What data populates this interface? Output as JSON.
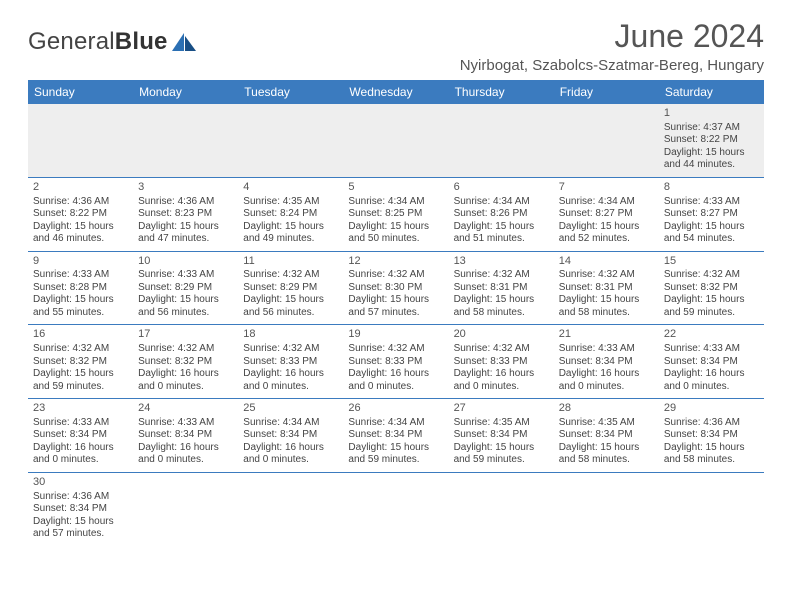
{
  "logo": {
    "text_a": "General",
    "text_b": "Blue",
    "icon_color_a": "#2b6fb3",
    "icon_color_b": "#184e85"
  },
  "title": "June 2024",
  "location": "Nyirbogat, Szabolcs-Szatmar-Bereg, Hungary",
  "colors": {
    "header_bg": "#3b7bbf",
    "header_fg": "#ffffff",
    "row_border": "#3b7bbf",
    "first_row_bg": "#eeeeee"
  },
  "day_headers": [
    "Sunday",
    "Monday",
    "Tuesday",
    "Wednesday",
    "Thursday",
    "Friday",
    "Saturday"
  ],
  "weeks": [
    [
      null,
      null,
      null,
      null,
      null,
      null,
      {
        "n": "1",
        "sr": "Sunrise: 4:37 AM",
        "ss": "Sunset: 8:22 PM",
        "d1": "Daylight: 15 hours",
        "d2": "and 44 minutes."
      }
    ],
    [
      {
        "n": "2",
        "sr": "Sunrise: 4:36 AM",
        "ss": "Sunset: 8:22 PM",
        "d1": "Daylight: 15 hours",
        "d2": "and 46 minutes."
      },
      {
        "n": "3",
        "sr": "Sunrise: 4:36 AM",
        "ss": "Sunset: 8:23 PM",
        "d1": "Daylight: 15 hours",
        "d2": "and 47 minutes."
      },
      {
        "n": "4",
        "sr": "Sunrise: 4:35 AM",
        "ss": "Sunset: 8:24 PM",
        "d1": "Daylight: 15 hours",
        "d2": "and 49 minutes."
      },
      {
        "n": "5",
        "sr": "Sunrise: 4:34 AM",
        "ss": "Sunset: 8:25 PM",
        "d1": "Daylight: 15 hours",
        "d2": "and 50 minutes."
      },
      {
        "n": "6",
        "sr": "Sunrise: 4:34 AM",
        "ss": "Sunset: 8:26 PM",
        "d1": "Daylight: 15 hours",
        "d2": "and 51 minutes."
      },
      {
        "n": "7",
        "sr": "Sunrise: 4:34 AM",
        "ss": "Sunset: 8:27 PM",
        "d1": "Daylight: 15 hours",
        "d2": "and 52 minutes."
      },
      {
        "n": "8",
        "sr": "Sunrise: 4:33 AM",
        "ss": "Sunset: 8:27 PM",
        "d1": "Daylight: 15 hours",
        "d2": "and 54 minutes."
      }
    ],
    [
      {
        "n": "9",
        "sr": "Sunrise: 4:33 AM",
        "ss": "Sunset: 8:28 PM",
        "d1": "Daylight: 15 hours",
        "d2": "and 55 minutes."
      },
      {
        "n": "10",
        "sr": "Sunrise: 4:33 AM",
        "ss": "Sunset: 8:29 PM",
        "d1": "Daylight: 15 hours",
        "d2": "and 56 minutes."
      },
      {
        "n": "11",
        "sr": "Sunrise: 4:32 AM",
        "ss": "Sunset: 8:29 PM",
        "d1": "Daylight: 15 hours",
        "d2": "and 56 minutes."
      },
      {
        "n": "12",
        "sr": "Sunrise: 4:32 AM",
        "ss": "Sunset: 8:30 PM",
        "d1": "Daylight: 15 hours",
        "d2": "and 57 minutes."
      },
      {
        "n": "13",
        "sr": "Sunrise: 4:32 AM",
        "ss": "Sunset: 8:31 PM",
        "d1": "Daylight: 15 hours",
        "d2": "and 58 minutes."
      },
      {
        "n": "14",
        "sr": "Sunrise: 4:32 AM",
        "ss": "Sunset: 8:31 PM",
        "d1": "Daylight: 15 hours",
        "d2": "and 58 minutes."
      },
      {
        "n": "15",
        "sr": "Sunrise: 4:32 AM",
        "ss": "Sunset: 8:32 PM",
        "d1": "Daylight: 15 hours",
        "d2": "and 59 minutes."
      }
    ],
    [
      {
        "n": "16",
        "sr": "Sunrise: 4:32 AM",
        "ss": "Sunset: 8:32 PM",
        "d1": "Daylight: 15 hours",
        "d2": "and 59 minutes."
      },
      {
        "n": "17",
        "sr": "Sunrise: 4:32 AM",
        "ss": "Sunset: 8:32 PM",
        "d1": "Daylight: 16 hours",
        "d2": "and 0 minutes."
      },
      {
        "n": "18",
        "sr": "Sunrise: 4:32 AM",
        "ss": "Sunset: 8:33 PM",
        "d1": "Daylight: 16 hours",
        "d2": "and 0 minutes."
      },
      {
        "n": "19",
        "sr": "Sunrise: 4:32 AM",
        "ss": "Sunset: 8:33 PM",
        "d1": "Daylight: 16 hours",
        "d2": "and 0 minutes."
      },
      {
        "n": "20",
        "sr": "Sunrise: 4:32 AM",
        "ss": "Sunset: 8:33 PM",
        "d1": "Daylight: 16 hours",
        "d2": "and 0 minutes."
      },
      {
        "n": "21",
        "sr": "Sunrise: 4:33 AM",
        "ss": "Sunset: 8:34 PM",
        "d1": "Daylight: 16 hours",
        "d2": "and 0 minutes."
      },
      {
        "n": "22",
        "sr": "Sunrise: 4:33 AM",
        "ss": "Sunset: 8:34 PM",
        "d1": "Daylight: 16 hours",
        "d2": "and 0 minutes."
      }
    ],
    [
      {
        "n": "23",
        "sr": "Sunrise: 4:33 AM",
        "ss": "Sunset: 8:34 PM",
        "d1": "Daylight: 16 hours",
        "d2": "and 0 minutes."
      },
      {
        "n": "24",
        "sr": "Sunrise: 4:33 AM",
        "ss": "Sunset: 8:34 PM",
        "d1": "Daylight: 16 hours",
        "d2": "and 0 minutes."
      },
      {
        "n": "25",
        "sr": "Sunrise: 4:34 AM",
        "ss": "Sunset: 8:34 PM",
        "d1": "Daylight: 16 hours",
        "d2": "and 0 minutes."
      },
      {
        "n": "26",
        "sr": "Sunrise: 4:34 AM",
        "ss": "Sunset: 8:34 PM",
        "d1": "Daylight: 15 hours",
        "d2": "and 59 minutes."
      },
      {
        "n": "27",
        "sr": "Sunrise: 4:35 AM",
        "ss": "Sunset: 8:34 PM",
        "d1": "Daylight: 15 hours",
        "d2": "and 59 minutes."
      },
      {
        "n": "28",
        "sr": "Sunrise: 4:35 AM",
        "ss": "Sunset: 8:34 PM",
        "d1": "Daylight: 15 hours",
        "d2": "and 58 minutes."
      },
      {
        "n": "29",
        "sr": "Sunrise: 4:36 AM",
        "ss": "Sunset: 8:34 PM",
        "d1": "Daylight: 15 hours",
        "d2": "and 58 minutes."
      }
    ],
    [
      {
        "n": "30",
        "sr": "Sunrise: 4:36 AM",
        "ss": "Sunset: 8:34 PM",
        "d1": "Daylight: 15 hours",
        "d2": "and 57 minutes."
      },
      null,
      null,
      null,
      null,
      null,
      null
    ]
  ]
}
